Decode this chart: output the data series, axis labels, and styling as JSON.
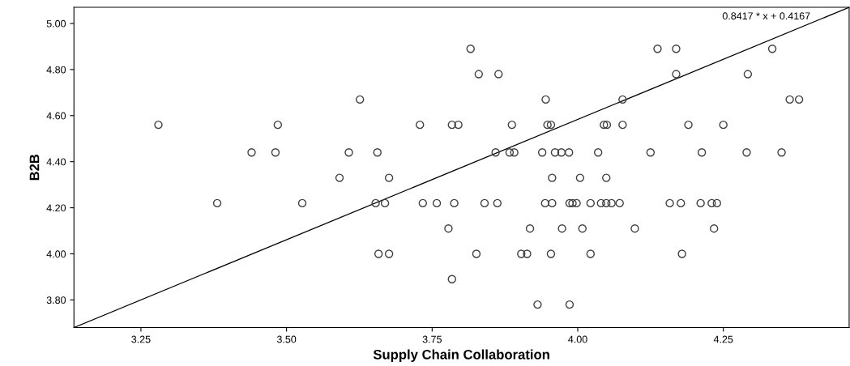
{
  "chart_data": {
    "type": "scatter",
    "xlabel": "Supply Chain Collaboration",
    "ylabel": "B2B",
    "annotations": [
      "0.8417 * x + 0.4167"
    ],
    "xlim": [
      3.135,
      4.466
    ],
    "ylim": [
      3.68,
      5.07
    ],
    "xticks": [
      3.25,
      {
        "value": 3.5,
        "label": "3.50"
      },
      3.75,
      {
        "value": 4.0,
        "label": "4.00"
      },
      4.25
    ],
    "yticks": [
      {
        "value": 3.8,
        "label": "3.80"
      },
      {
        "value": 4.0,
        "label": "4.00"
      },
      {
        "value": 4.2,
        "label": "4.20"
      },
      {
        "value": 4.4,
        "label": "4.40"
      },
      {
        "value": 4.6,
        "label": "4.60"
      },
      {
        "value": 4.8,
        "label": "4.80"
      },
      {
        "value": 5.0,
        "label": "5.00"
      }
    ],
    "grid": false,
    "legend": false,
    "marker": "circle",
    "series": [
      {
        "color": "#404040",
        "x": [
          3.28,
          3.485,
          3.44,
          3.481,
          3.381,
          3.816,
          3.83,
          3.864,
          3.626,
          3.945,
          3.729,
          3.784,
          3.795,
          3.887,
          3.948,
          3.954,
          3.607,
          3.656,
          3.859,
          3.883,
          3.891,
          3.939,
          3.961,
          3.972,
          3.985,
          3.591,
          3.676,
          3.956,
          3.527,
          3.653,
          3.669,
          3.734,
          3.758,
          3.788,
          3.84,
          3.862,
          3.944,
          3.956,
          3.778,
          3.918,
          3.973,
          3.658,
          3.676,
          3.826,
          3.903,
          3.913,
          3.954,
          3.784,
          3.931,
          3.986,
          4.137,
          4.169,
          4.334,
          4.169,
          4.292,
          4.077,
          4.364,
          4.38,
          4.045,
          4.05,
          4.077,
          4.19,
          4.25,
          4.035,
          4.125,
          4.213,
          4.29,
          4.35,
          4.004,
          4.049,
          3.986,
          3.991,
          3.998,
          4.022,
          4.04,
          4.049,
          4.058,
          4.072,
          4.158,
          4.177,
          4.211,
          4.23,
          4.239,
          4.008,
          4.098,
          4.234,
          4.022,
          4.179
        ],
        "values": [
          4.56,
          4.56,
          4.44,
          4.44,
          4.22,
          4.89,
          4.78,
          4.78,
          4.67,
          4.67,
          4.56,
          4.56,
          4.56,
          4.56,
          4.56,
          4.56,
          4.44,
          4.44,
          4.44,
          4.44,
          4.44,
          4.44,
          4.44,
          4.44,
          4.44,
          4.33,
          4.33,
          4.33,
          4.22,
          4.22,
          4.22,
          4.22,
          4.22,
          4.22,
          4.22,
          4.22,
          4.22,
          4.22,
          4.11,
          4.11,
          4.11,
          4.0,
          4.0,
          4.0,
          4.0,
          4.0,
          4.0,
          3.89,
          3.78,
          3.78,
          4.89,
          4.89,
          4.89,
          4.78,
          4.78,
          4.67,
          4.67,
          4.67,
          4.56,
          4.56,
          4.56,
          4.56,
          4.56,
          4.44,
          4.44,
          4.44,
          4.44,
          4.44,
          4.33,
          4.33,
          4.22,
          4.22,
          4.22,
          4.22,
          4.22,
          4.22,
          4.22,
          4.22,
          4.22,
          4.22,
          4.22,
          4.22,
          4.22,
          4.11,
          4.11,
          4.11,
          4.0,
          4.0
        ]
      },
      {
        "type": "line",
        "color": "#000000",
        "marker": "none",
        "x": [
          3.135,
          4.466
        ],
        "values": [
          3.68,
          5.07
        ]
      }
    ]
  }
}
